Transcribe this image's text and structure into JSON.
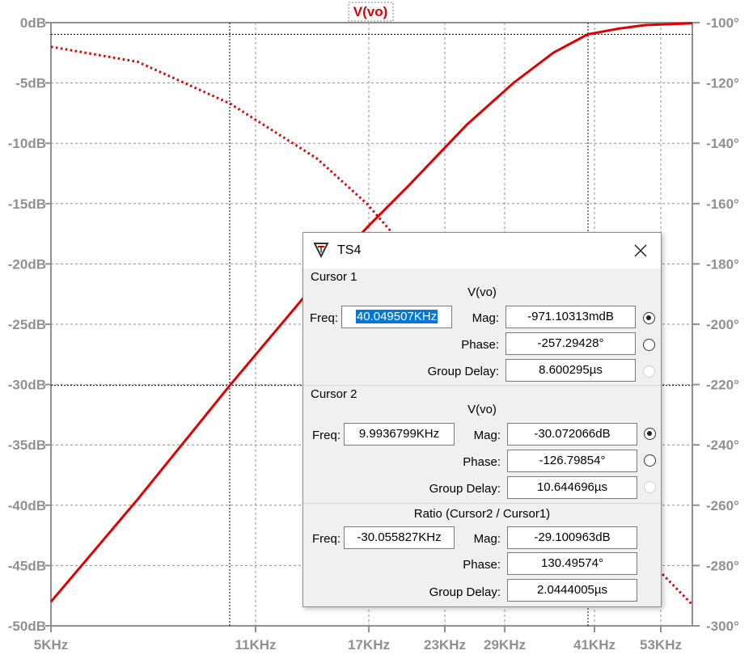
{
  "plot": {
    "title": "V(vo)",
    "trace_color": "#e00000",
    "axis_color": "#909090",
    "left_axis_labels": [
      "0dB",
      "-5dB",
      "-10dB",
      "-15dB",
      "-20dB",
      "-25dB",
      "-30dB",
      "-35dB",
      "-40dB",
      "-45dB",
      "-50dB"
    ],
    "right_axis_labels": [
      "-100°",
      "-120°",
      "-140°",
      "-160°",
      "-180°",
      "-200°",
      "-220°",
      "-240°",
      "-260°",
      "-280°",
      "-300°"
    ],
    "x_axis_labels": [
      "5KHz",
      "11KHz",
      "17KHz",
      "23KHz",
      "29KHz",
      "41KHz",
      "53KHz"
    ]
  },
  "chart_data": {
    "type": "line",
    "x_scale": "log",
    "xlim_hz": [
      5000,
      60000
    ],
    "ylim_db": [
      -50,
      0
    ],
    "y2lim_deg": [
      -300,
      -100
    ],
    "series": [
      {
        "name": "V(vo)",
        "quantity": "magnitude",
        "style": "solid",
        "x_hz": [
          5000,
          7000,
          10000,
          14000,
          17000,
          20000,
          25000,
          30000,
          35000,
          40000,
          45000,
          50000,
          60000
        ],
        "y_db": [
          -48.0,
          -39.5,
          -30.07,
          -21.5,
          -17.0,
          -13.5,
          -8.5,
          -5.0,
          -2.5,
          -0.97,
          -0.5,
          -0.2,
          -0.05
        ]
      },
      {
        "name": "V(vo)",
        "quantity": "phase",
        "style": "dotted",
        "x_hz": [
          5000,
          7000,
          10000,
          14000,
          17000,
          20000,
          25000,
          30000,
          35000,
          40000,
          45000,
          50000,
          60000
        ],
        "y_deg": [
          -108.0,
          -113.0,
          -126.8,
          -145.0,
          -160.0,
          -176.0,
          -205.0,
          -226.0,
          -242.0,
          -257.3,
          -268.0,
          -277.0,
          -293.0
        ]
      }
    ],
    "cursors": [
      {
        "x_hz": 9993.6799,
        "y_db": -30.072066
      },
      {
        "x_hz": 40049.507,
        "y_db": -0.97110313
      }
    ]
  },
  "dialog": {
    "title": "TS4",
    "cursor1": {
      "label": "Cursor 1",
      "signal": "V(vo)",
      "freq_label": "Freq:",
      "freq": "40.049507KHz",
      "mag_label": "Mag:",
      "mag": "-971.10313mdB",
      "phase_label": "Phase:",
      "phase": "-257.29428°",
      "gd_label": "Group Delay:",
      "gd": "8.600295µs"
    },
    "cursor2": {
      "label": "Cursor 2",
      "signal": "V(vo)",
      "freq_label": "Freq:",
      "freq": "9.9936799KHz",
      "mag_label": "Mag:",
      "mag": "-30.072066dB",
      "phase_label": "Phase:",
      "phase": "-126.79854°",
      "gd_label": "Group Delay:",
      "gd": "10.644696µs"
    },
    "ratio": {
      "label": "Ratio (Cursor2 / Cursor1)",
      "freq_label": "Freq:",
      "freq": "-30.055827KHz",
      "mag_label": "Mag:",
      "mag": "-29.100963dB",
      "phase_label": "Phase:",
      "phase": "130.49574°",
      "gd_label": "Group Delay:",
      "gd": "2.0444005µs"
    }
  }
}
